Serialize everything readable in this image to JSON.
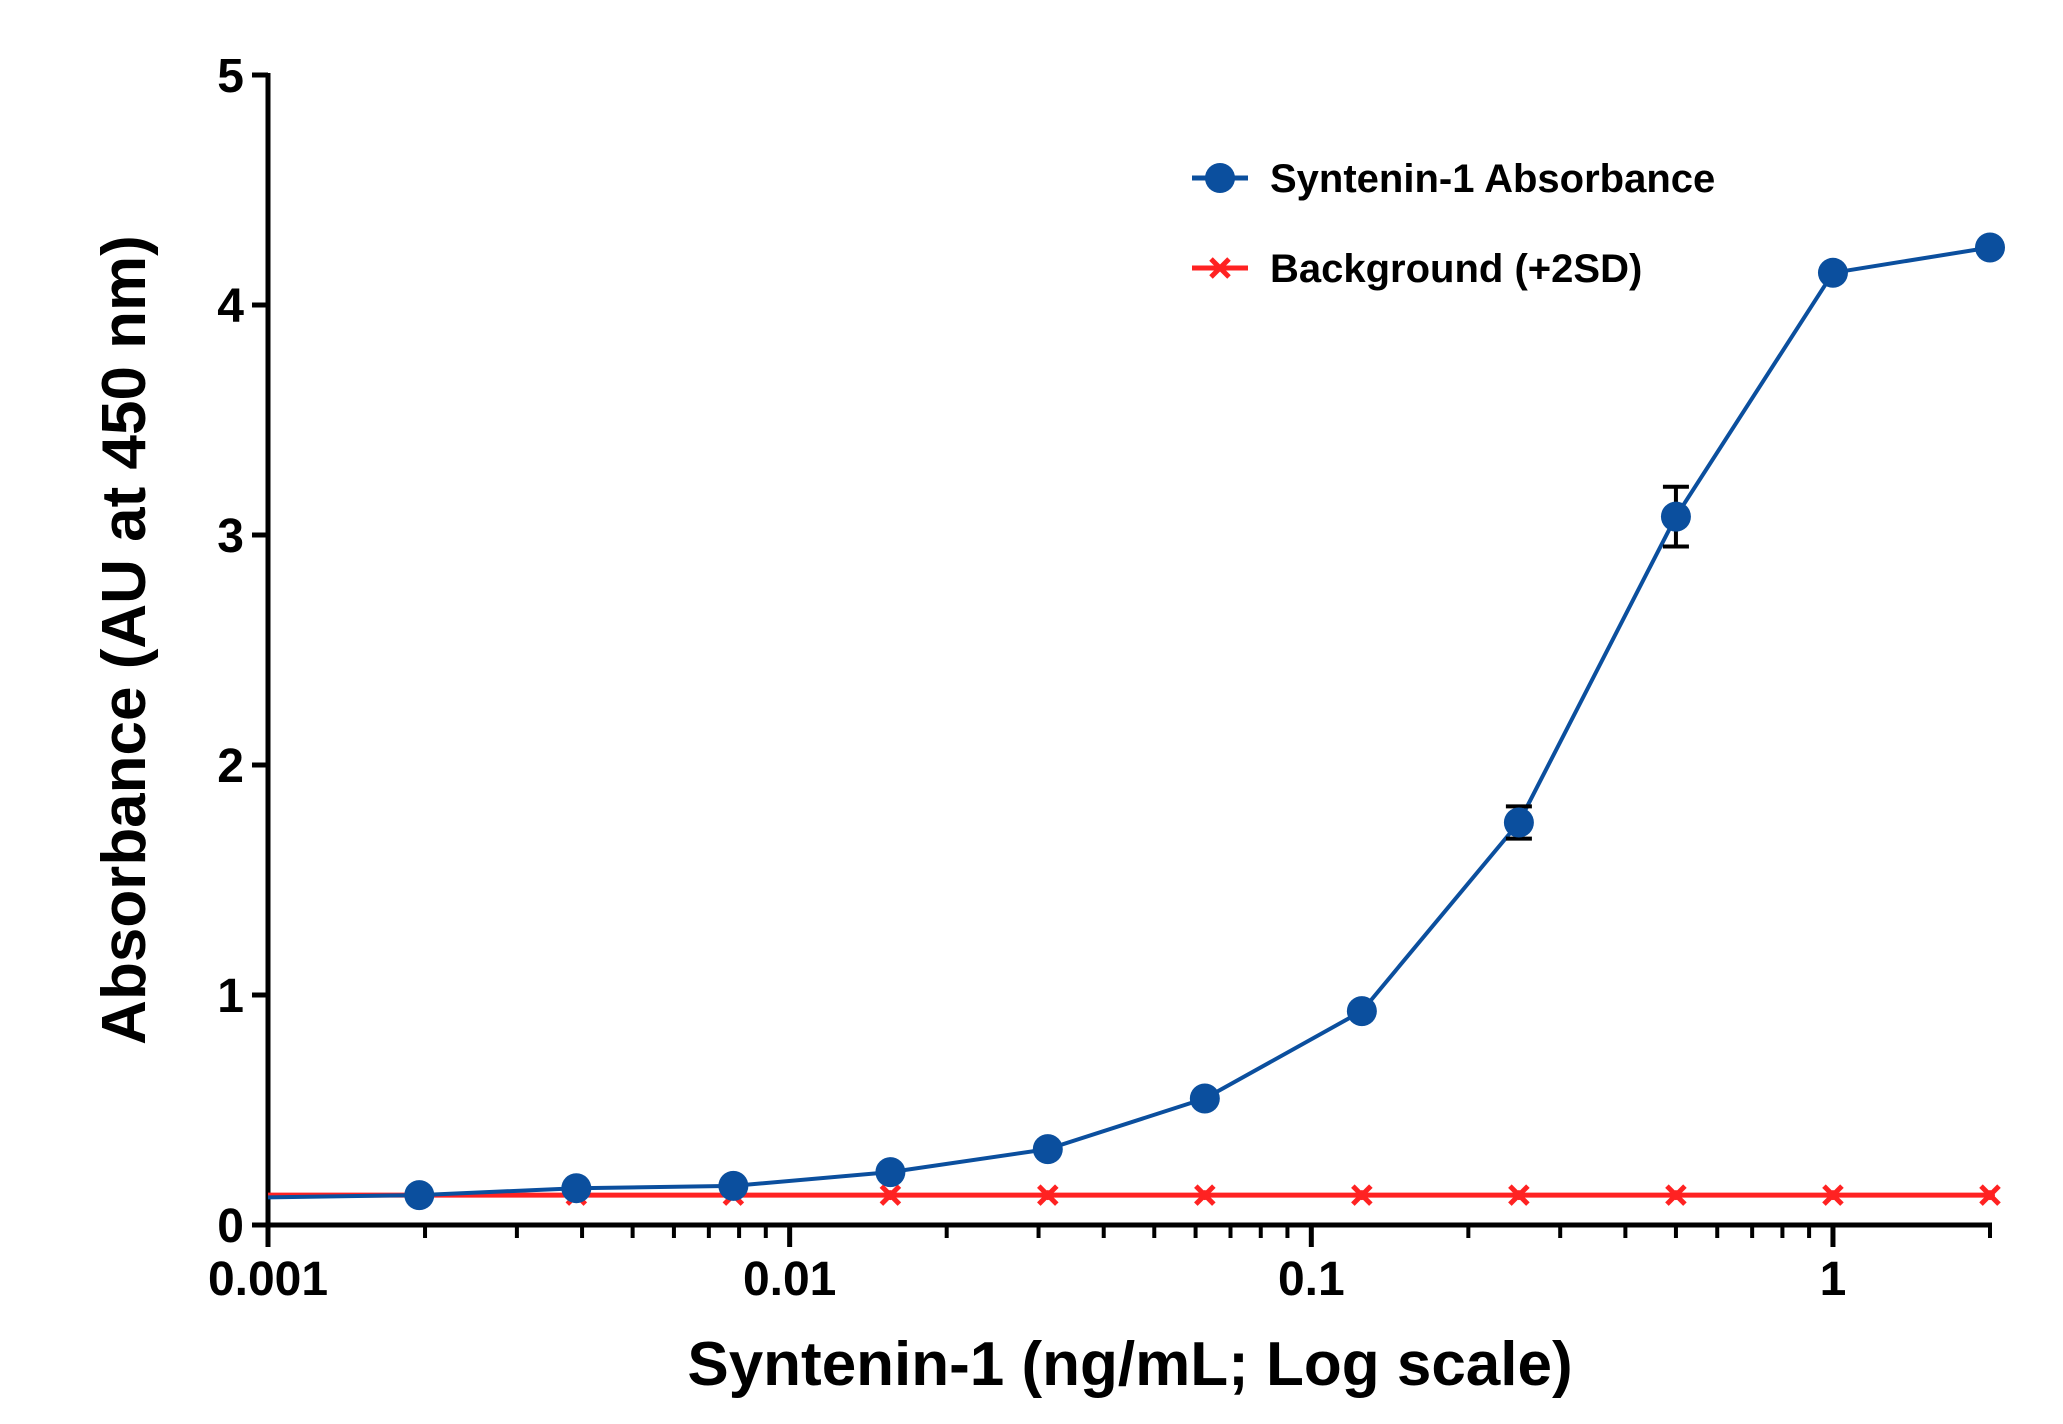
{
  "colors": {
    "primary_series": "#0b4f9e",
    "background_series": "#ff2222",
    "axis": "#000000",
    "error_bar": "#000000"
  },
  "chart_data": {
    "type": "line",
    "title": "",
    "xlabel": "Syntenin-1 (ng/mL; Log scale)",
    "ylabel": "Absorbance (AU at 450 nm)",
    "xscale": "log",
    "xlim": [
      0.001,
      2
    ],
    "ylim": [
      0,
      5
    ],
    "grid": false,
    "legend_position": "top-right",
    "x_ticks": [
      0.001,
      0.01,
      0.1,
      1
    ],
    "x_tick_labels": [
      "0.001",
      "0.01",
      "0.1",
      "1"
    ],
    "y_ticks": [
      0,
      1,
      2,
      3,
      4,
      5
    ],
    "y_tick_labels": [
      "0",
      "1",
      "2",
      "3",
      "4",
      "5"
    ],
    "series": [
      {
        "name": "Syntenin-1 Absorbance",
        "color": "#0b4f9e",
        "marker": "circle",
        "line_start": {
          "x": 0.001,
          "y": 0.12
        },
        "x": [
          0.00195,
          0.0039,
          0.0078,
          0.0156,
          0.03125,
          0.0625,
          0.125,
          0.25,
          0.5,
          1,
          2
        ],
        "values": [
          0.13,
          0.16,
          0.17,
          0.23,
          0.33,
          0.55,
          0.93,
          1.75,
          3.08,
          4.14,
          4.25
        ],
        "errors": [
          0,
          0,
          0,
          0,
          0,
          0,
          0,
          0.07,
          0.13,
          0,
          0
        ]
      },
      {
        "name": "Background (+2SD)",
        "color": "#ff2222",
        "marker": "cross",
        "line_start": {
          "x": 0.001,
          "y": 0.13
        },
        "x": [
          0.0039,
          0.0078,
          0.0156,
          0.03125,
          0.0625,
          0.125,
          0.25,
          0.5,
          1,
          2
        ],
        "values": [
          0.13,
          0.13,
          0.13,
          0.13,
          0.13,
          0.13,
          0.13,
          0.13,
          0.13,
          0.13
        ]
      }
    ]
  }
}
